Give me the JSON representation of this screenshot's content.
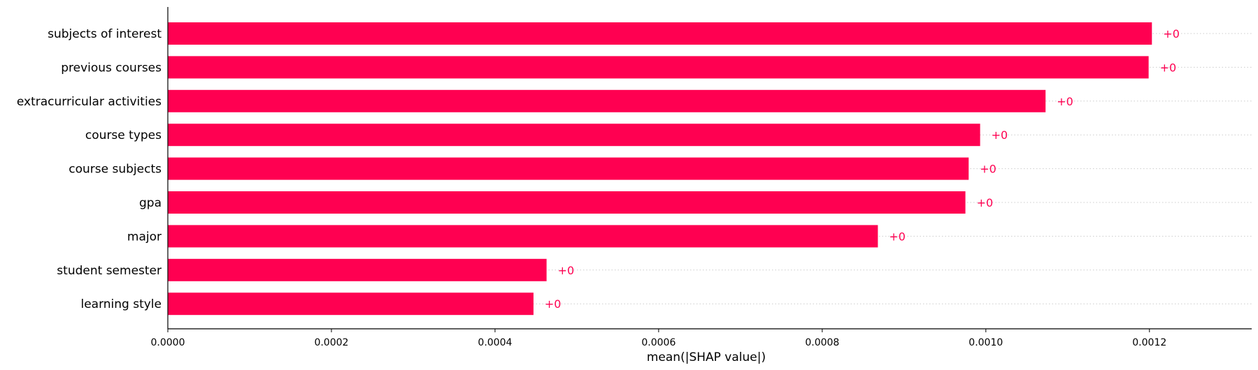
{
  "chart_data": {
    "type": "bar",
    "orientation": "horizontal",
    "categories": [
      "subjects of interest",
      "previous courses",
      "extracurricular activities",
      "course types",
      "course subjects",
      "gpa",
      "major",
      "student semester",
      "learning style"
    ],
    "values": [
      0.001203,
      0.001199,
      0.001073,
      0.000993,
      0.000979,
      0.000975,
      0.000868,
      0.000463,
      0.000447
    ],
    "data_labels": [
      "+0",
      "+0",
      "+0",
      "+0",
      "+0",
      "+0",
      "+0",
      "+0",
      "+0"
    ],
    "xlabel": "mean(|SHAP value|)",
    "xlim": [
      0,
      0.001325
    ],
    "xticks": [
      0,
      0.0002,
      0.0004,
      0.0006,
      0.0008,
      0.001,
      0.0012
    ],
    "xtick_labels": [
      "0.0000",
      "0.0002",
      "0.0004",
      "0.0006",
      "0.0008",
      "0.0010",
      "0.0012"
    ],
    "bar_color": "#ff0051",
    "label_color": "#ff0051",
    "gridlines": "dotted row guides",
    "legend": "none"
  }
}
